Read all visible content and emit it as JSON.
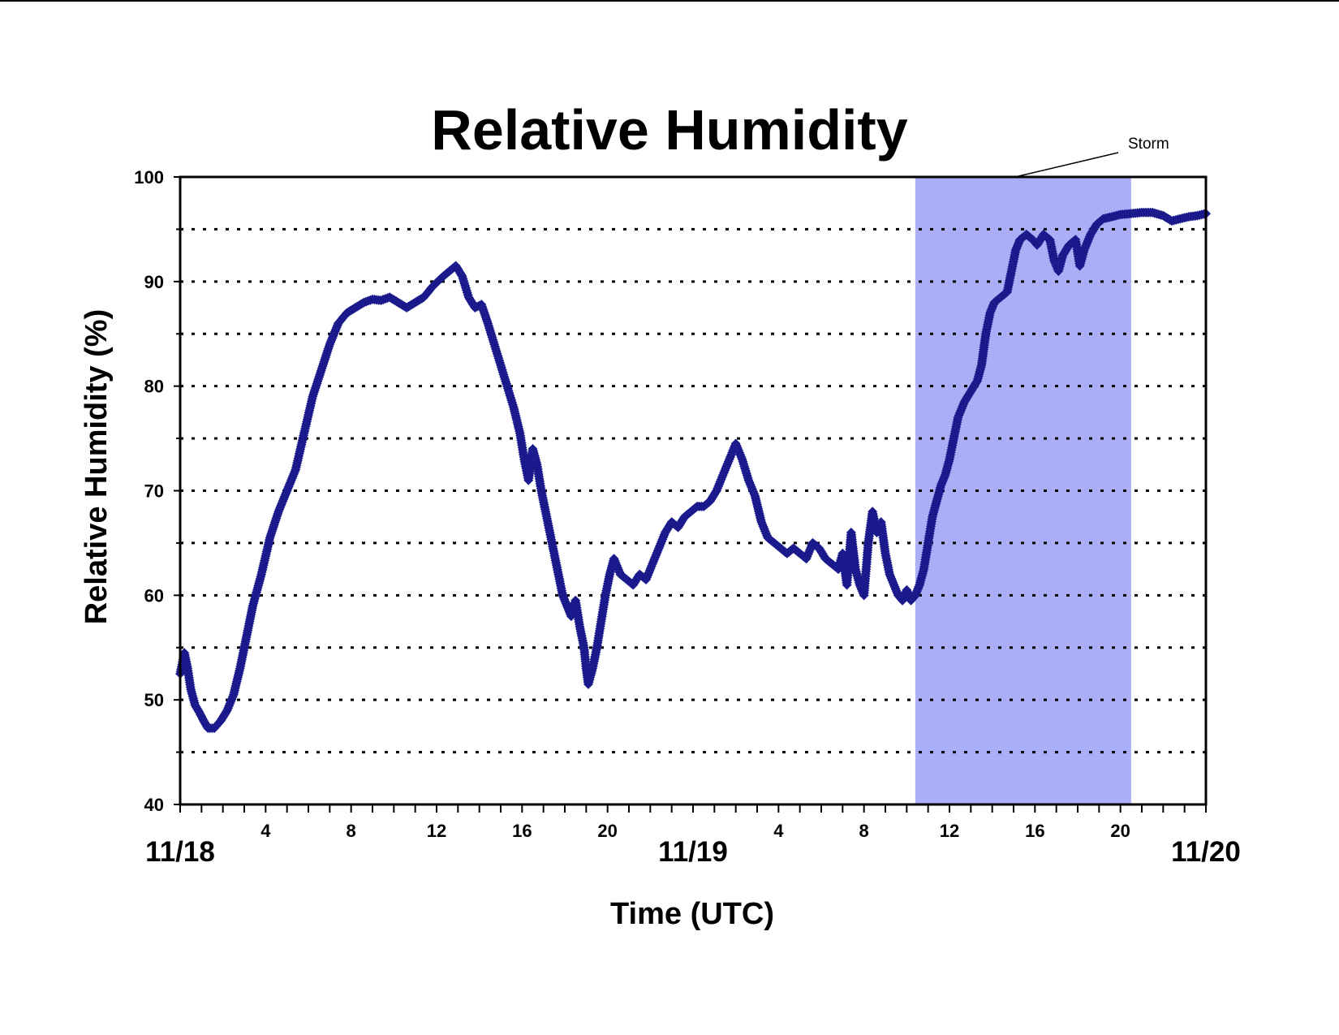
{
  "chart_data": {
    "type": "scatter",
    "title": "Relative Humidity",
    "xlabel": "Time (UTC)",
    "ylabel": "Relative Humidity (%)",
    "x_unit": "hours since 11/18 00 UTC",
    "xlim": [
      0,
      48
    ],
    "ylim": [
      40,
      100
    ],
    "y_major_ticks": [
      40,
      50,
      60,
      70,
      80,
      90,
      100
    ],
    "y_minor_ticks": [
      45,
      55,
      65,
      75,
      85,
      95
    ],
    "x_hour_ticks": [
      {
        "x": 4,
        "label": "4"
      },
      {
        "x": 8,
        "label": "8"
      },
      {
        "x": 12,
        "label": "12"
      },
      {
        "x": 16,
        "label": "16"
      },
      {
        "x": 20,
        "label": "20"
      },
      {
        "x": 28,
        "label": "4"
      },
      {
        "x": 32,
        "label": "8"
      },
      {
        "x": 36,
        "label": "12"
      },
      {
        "x": 40,
        "label": "16"
      },
      {
        "x": 44,
        "label": "20"
      }
    ],
    "x_date_ticks": [
      {
        "x": 0,
        "label": "11/18"
      },
      {
        "x": 24,
        "label": "11/19"
      },
      {
        "x": 48,
        "label": "11/20"
      }
    ],
    "grid": "dotted horizontal lines at every 5%",
    "marker": "diamond",
    "series": [
      {
        "name": "",
        "color": "#1a1a8c",
        "points": [
          [
            0,
            52.5
          ],
          [
            0.2,
            54.5
          ],
          [
            0.35,
            53
          ],
          [
            0.5,
            51
          ],
          [
            0.7,
            49.5
          ],
          [
            0.9,
            48.8
          ],
          [
            1.1,
            48
          ],
          [
            1.3,
            47.3
          ],
          [
            1.6,
            47.3
          ],
          [
            1.9,
            48
          ],
          [
            2.2,
            49
          ],
          [
            2.5,
            50.5
          ],
          [
            2.8,
            53
          ],
          [
            3.1,
            56
          ],
          [
            3.4,
            59
          ],
          [
            3.8,
            62
          ],
          [
            4.2,
            65.5
          ],
          [
            4.6,
            68
          ],
          [
            5.0,
            70
          ],
          [
            5.4,
            72
          ],
          [
            5.8,
            75.5
          ],
          [
            6.2,
            79
          ],
          [
            6.6,
            81.5
          ],
          [
            7.0,
            84
          ],
          [
            7.4,
            86
          ],
          [
            7.8,
            87
          ],
          [
            8.2,
            87.5
          ],
          [
            8.6,
            88
          ],
          [
            9.0,
            88.3
          ],
          [
            9.4,
            88.2
          ],
          [
            9.8,
            88.5
          ],
          [
            10.2,
            88
          ],
          [
            10.6,
            87.5
          ],
          [
            11.0,
            88
          ],
          [
            11.4,
            88.5
          ],
          [
            11.8,
            89.5
          ],
          [
            12.2,
            90.3
          ],
          [
            12.6,
            91
          ],
          [
            12.9,
            91.5
          ],
          [
            13.2,
            90.5
          ],
          [
            13.5,
            88.5
          ],
          [
            13.8,
            87.5
          ],
          [
            14.1,
            87.8
          ],
          [
            14.4,
            86
          ],
          [
            14.7,
            84
          ],
          [
            15.0,
            82
          ],
          [
            15.3,
            80
          ],
          [
            15.6,
            78
          ],
          [
            15.9,
            75.5
          ],
          [
            16.1,
            73
          ],
          [
            16.3,
            71
          ],
          [
            16.5,
            74
          ],
          [
            16.7,
            72.5
          ],
          [
            16.9,
            70
          ],
          [
            17.1,
            68
          ],
          [
            17.3,
            66
          ],
          [
            17.5,
            64
          ],
          [
            17.7,
            62
          ],
          [
            17.9,
            60
          ],
          [
            18.1,
            59
          ],
          [
            18.3,
            58
          ],
          [
            18.5,
            59.5
          ],
          [
            18.7,
            57
          ],
          [
            18.9,
            55
          ],
          [
            19.0,
            53
          ],
          [
            19.1,
            51.5
          ],
          [
            19.3,
            53
          ],
          [
            19.5,
            55
          ],
          [
            19.7,
            57.5
          ],
          [
            19.9,
            60
          ],
          [
            20.1,
            62
          ],
          [
            20.3,
            63.5
          ],
          [
            20.6,
            62
          ],
          [
            20.9,
            61.5
          ],
          [
            21.2,
            61
          ],
          [
            21.5,
            62
          ],
          [
            21.8,
            61.5
          ],
          [
            22.1,
            63
          ],
          [
            22.4,
            64.5
          ],
          [
            22.7,
            66
          ],
          [
            23.0,
            67
          ],
          [
            23.3,
            66.5
          ],
          [
            23.6,
            67.5
          ],
          [
            23.9,
            68
          ],
          [
            24.2,
            68.5
          ],
          [
            24.5,
            68.5
          ],
          [
            24.8,
            69
          ],
          [
            25.1,
            70
          ],
          [
            25.4,
            71.5
          ],
          [
            25.7,
            73
          ],
          [
            26.0,
            74.5
          ],
          [
            26.3,
            73
          ],
          [
            26.6,
            71
          ],
          [
            26.9,
            69.5
          ],
          [
            27.2,
            67
          ],
          [
            27.5,
            65.5
          ],
          [
            27.8,
            65
          ],
          [
            28.1,
            64.5
          ],
          [
            28.4,
            64
          ],
          [
            28.7,
            64.5
          ],
          [
            29.0,
            64
          ],
          [
            29.3,
            63.5
          ],
          [
            29.6,
            65
          ],
          [
            29.9,
            64.5
          ],
          [
            30.2,
            63.5
          ],
          [
            30.5,
            63
          ],
          [
            30.8,
            62.5
          ],
          [
            31.0,
            64
          ],
          [
            31.2,
            61
          ],
          [
            31.4,
            66
          ],
          [
            31.6,
            62.5
          ],
          [
            31.8,
            61
          ],
          [
            32.0,
            60
          ],
          [
            32.2,
            65
          ],
          [
            32.4,
            68
          ],
          [
            32.6,
            66
          ],
          [
            32.8,
            67
          ],
          [
            33.0,
            64
          ],
          [
            33.2,
            62
          ],
          [
            33.4,
            61
          ],
          [
            33.6,
            60
          ],
          [
            33.8,
            59.5
          ],
          [
            34.0,
            60.5
          ],
          [
            34.2,
            59.5
          ],
          [
            34.4,
            60
          ],
          [
            34.6,
            61
          ],
          [
            34.8,
            62.5
          ],
          [
            35.0,
            65
          ],
          [
            35.2,
            67.5
          ],
          [
            35.4,
            69
          ],
          [
            35.6,
            70.5
          ],
          [
            35.8,
            71.5
          ],
          [
            36.0,
            73
          ],
          [
            36.2,
            75
          ],
          [
            36.4,
            77
          ],
          [
            36.7,
            78.5
          ],
          [
            37.0,
            79.5
          ],
          [
            37.3,
            80.5
          ],
          [
            37.5,
            82
          ],
          [
            37.7,
            85
          ],
          [
            37.9,
            87
          ],
          [
            38.1,
            88
          ],
          [
            38.4,
            88.5
          ],
          [
            38.7,
            89
          ],
          [
            38.9,
            91
          ],
          [
            39.1,
            93
          ],
          [
            39.3,
            94
          ],
          [
            39.6,
            94.5
          ],
          [
            39.9,
            94
          ],
          [
            40.1,
            93.5
          ],
          [
            40.4,
            94.5
          ],
          [
            40.7,
            94
          ],
          [
            40.9,
            92
          ],
          [
            41.1,
            91
          ],
          [
            41.3,
            92.5
          ],
          [
            41.6,
            93.5
          ],
          [
            41.9,
            94
          ],
          [
            42.1,
            91.5
          ],
          [
            42.3,
            93
          ],
          [
            42.6,
            94.5
          ],
          [
            42.9,
            95.5
          ],
          [
            43.2,
            96
          ],
          [
            43.6,
            96.2
          ],
          [
            44.0,
            96.4
          ],
          [
            44.5,
            96.5
          ],
          [
            45.0,
            96.6
          ],
          [
            45.5,
            96.6
          ],
          [
            46.0,
            96.3
          ],
          [
            46.4,
            95.8
          ],
          [
            46.8,
            96
          ],
          [
            47.2,
            96.2
          ],
          [
            47.6,
            96.3
          ],
          [
            48.0,
            96.5
          ]
        ]
      }
    ],
    "annotations": [
      {
        "text": "Storm",
        "type": "shaded-span",
        "x_start": 34.4,
        "x_end": 44.5,
        "color": "#a9aef7"
      }
    ]
  }
}
